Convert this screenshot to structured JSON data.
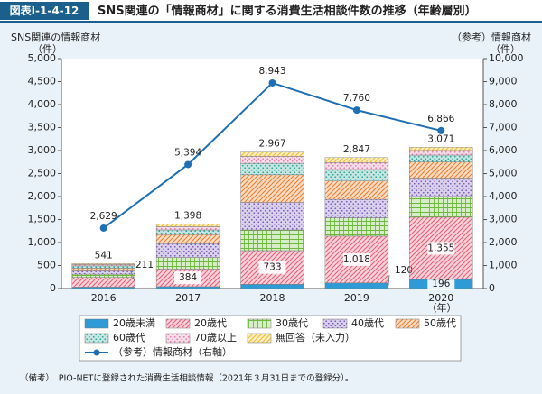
{
  "header": {
    "badge": "図表Ⅰ-1-4-12",
    "note": "（備考）　PIO-NETに登録された消費生活相談情報（2021年３月31日までの登録分）。"
  },
  "chart_data": {
    "type": "bar",
    "title": "SNS関連の「情報商材」に関する消費生活相談件数の推移（年齢層別）",
    "y_label": [
      "SNS関連の情報商材",
      "（件）"
    ],
    "y2_label": [
      "（参考）情報商材",
      "（件）"
    ],
    "x_unit": "（年）",
    "categories": [
      "2016",
      "2017",
      "2018",
      "2019",
      "2020"
    ],
    "stacked": true,
    "ylim": [
      0,
      5000
    ],
    "yticks": [
      0,
      500,
      {
        "value": 1000,
        "label": "1,000"
      },
      {
        "value": 1500,
        "label": "1,500"
      },
      {
        "value": 2000,
        "label": "2,000"
      },
      {
        "value": 2500,
        "label": "2,500"
      },
      {
        "value": 3000,
        "label": "3,000"
      },
      {
        "value": 3500,
        "label": "3,500"
      },
      {
        "value": 4000,
        "label": "4,000"
      },
      {
        "value": 4500,
        "label": "4,500"
      },
      {
        "value": 5000,
        "label": "5,000"
      }
    ],
    "y2lim": [
      0,
      10000
    ],
    "y2ticks": [
      0,
      {
        "value": 1000,
        "label": "1,000"
      },
      {
        "value": 2000,
        "label": "2,000"
      },
      {
        "value": 3000,
        "label": "3,000"
      },
      {
        "value": 4000,
        "label": "4,000"
      },
      {
        "value": 5000,
        "label": "5,000"
      },
      {
        "value": 6000,
        "label": "6,000"
      },
      {
        "value": 7000,
        "label": "7,000"
      },
      {
        "value": 8000,
        "label": "8,000"
      },
      {
        "value": 9000,
        "label": "9,000"
      },
      {
        "value": 10000,
        "label": "10,000"
      }
    ],
    "series": [
      {
        "name": "20歳未満",
        "color": "#2e9bd6",
        "pattern": "solid",
        "values": [
          30,
          40,
          90,
          120,
          196
        ],
        "value_labels": [
          null,
          null,
          null,
          "120",
          "196"
        ]
      },
      {
        "name": "20歳代",
        "color": "#e8607a",
        "pattern": "hatch",
        "values": [
          211,
          384,
          733,
          1018,
          1355
        ],
        "value_labels": [
          "211",
          "384",
          "733",
          "1,018",
          "1,355"
        ]
      },
      {
        "name": "30歳代",
        "color": "#6fb83e",
        "pattern": "grid",
        "values": [
          70,
          250,
          450,
          400,
          450
        ]
      },
      {
        "name": "40歳代",
        "color": "#7a5cb8",
        "pattern": "dots",
        "values": [
          70,
          300,
          600,
          400,
          400
        ]
      },
      {
        "name": "50歳代",
        "color": "#ee7f30",
        "pattern": "hatch",
        "values": [
          60,
          200,
          600,
          400,
          350
        ]
      },
      {
        "name": "60歳代",
        "color": "#2fa595",
        "pattern": "dots",
        "values": [
          50,
          100,
          250,
          250,
          150
        ]
      },
      {
        "name": "70歳以上",
        "color": "#e27fae",
        "pattern": "dots",
        "values": [
          30,
          70,
          150,
          150,
          100
        ]
      },
      {
        "name": "無回答（未入力）",
        "color": "#f0bd2a",
        "pattern": "hatch",
        "values": [
          20,
          54,
          94,
          109,
          70
        ]
      },
      {
        "name": "（参考）情報商材（右軸）",
        "color": "#1f6fb5",
        "type": "line",
        "axis": "y2",
        "values": [
          2629,
          5394,
          8943,
          7760,
          6866
        ],
        "value_labels": [
          "2,629",
          "5,394",
          "8,943",
          "7,760",
          "6,866"
        ]
      }
    ],
    "totals": {
      "values": [
        541,
        1398,
        2967,
        2847,
        3071
      ],
      "value_labels": [
        "541",
        "1,398",
        "2,967",
        "2,847",
        "3,071"
      ]
    }
  }
}
